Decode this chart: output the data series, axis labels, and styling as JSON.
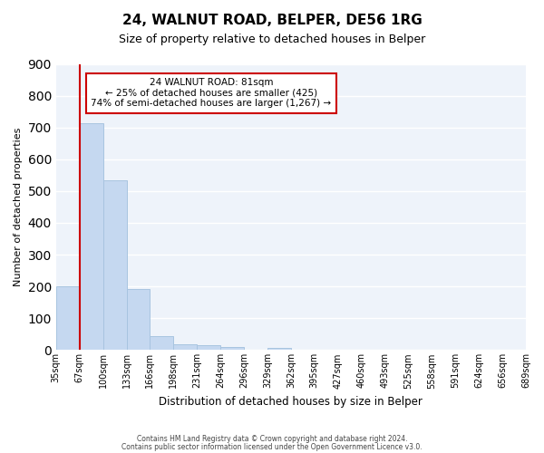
{
  "title": "24, WALNUT ROAD, BELPER, DE56 1RG",
  "subtitle": "Size of property relative to detached houses in Belper",
  "xlabel": "Distribution of detached houses by size in Belper",
  "ylabel": "Number of detached properties",
  "bin_labels": [
    "35sqm",
    "67sqm",
    "100sqm",
    "133sqm",
    "166sqm",
    "198sqm",
    "231sqm",
    "264sqm",
    "296sqm",
    "329sqm",
    "362sqm",
    "395sqm",
    "427sqm",
    "460sqm",
    "493sqm",
    "525sqm",
    "558sqm",
    "591sqm",
    "624sqm",
    "656sqm",
    "689sqm"
  ],
  "bar_values": [
    200,
    714,
    535,
    193,
    44,
    18,
    14,
    10,
    0,
    8,
    0,
    0,
    0,
    0,
    0,
    0,
    0,
    0,
    0,
    0
  ],
  "bar_color": "#c5d8f0",
  "bar_edge_color": "#a8c4e0",
  "vline_x_idx": 1,
  "vline_color": "#cc0000",
  "ylim": [
    0,
    900
  ],
  "yticks": [
    0,
    100,
    200,
    300,
    400,
    500,
    600,
    700,
    800,
    900
  ],
  "annotation_title": "24 WALNUT ROAD: 81sqm",
  "annotation_line1": "← 25% of detached houses are smaller (425)",
  "annotation_line2": "74% of semi-detached houses are larger (1,267) →",
  "annotation_box_color": "#ffffff",
  "annotation_box_edge": "#cc0000",
  "footer_line1": "Contains HM Land Registry data © Crown copyright and database right 2024.",
  "footer_line2": "Contains public sector information licensed under the Open Government Licence v3.0.",
  "background_color": "#ffffff",
  "plot_background_color": "#eef3fa",
  "grid_color": "#ffffff"
}
